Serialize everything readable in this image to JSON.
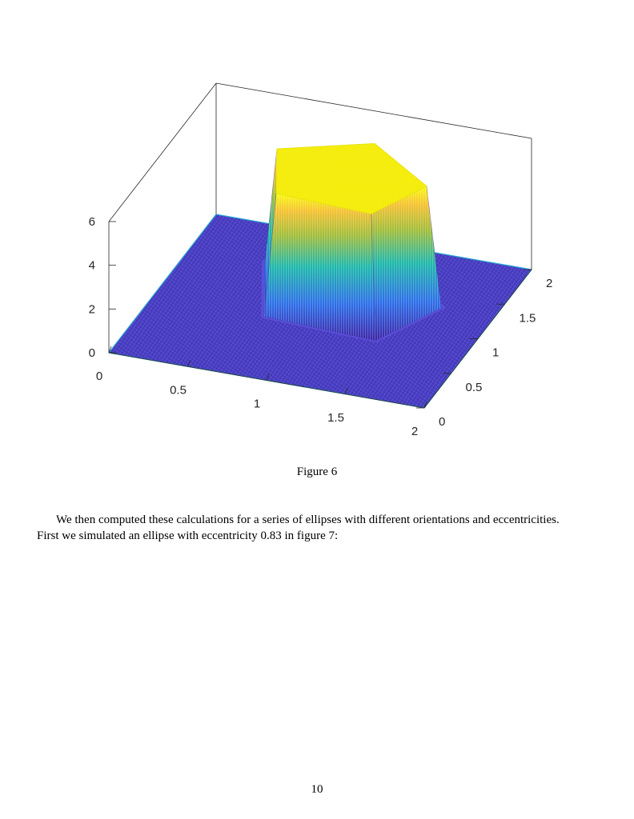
{
  "chart_data": {
    "type": "surface",
    "title": "",
    "xlabel": "",
    "ylabel": "",
    "zlabel": "",
    "xlim": [
      0,
      2
    ],
    "ylim": [
      0,
      2
    ],
    "zlim": [
      0,
      6
    ],
    "x_ticks": [
      "0",
      "0.5",
      "1",
      "1.5",
      "2"
    ],
    "y_ticks": [
      "0",
      "0.5",
      "1",
      "1.5",
      "2"
    ],
    "z_ticks": [
      "0",
      "2",
      "4",
      "6"
    ],
    "surface": {
      "description": "pentagon-shaped plateau on flat base",
      "base_value": 0,
      "plateau_value": 5.5,
      "plateau_vertices_xy": [
        [
          0.55,
          1.45
        ],
        [
          0.75,
          0.85
        ],
        [
          1.4,
          0.8
        ],
        [
          1.6,
          1.3
        ],
        [
          1.1,
          1.75
        ]
      ]
    },
    "colormap": "parula",
    "colors": {
      "low": "#3e26a8",
      "mid": "#1fb8ac",
      "high": "#f9fb0e"
    },
    "grid": false
  },
  "caption": "Figure 6",
  "paragraph": {
    "line1": "We then computed these calculations for a series of ellipses with different orientations and eccentricities.",
    "line2": "First we simulated an ellipse with eccentricity 0.83 in figure 7:"
  },
  "page_number": "10"
}
